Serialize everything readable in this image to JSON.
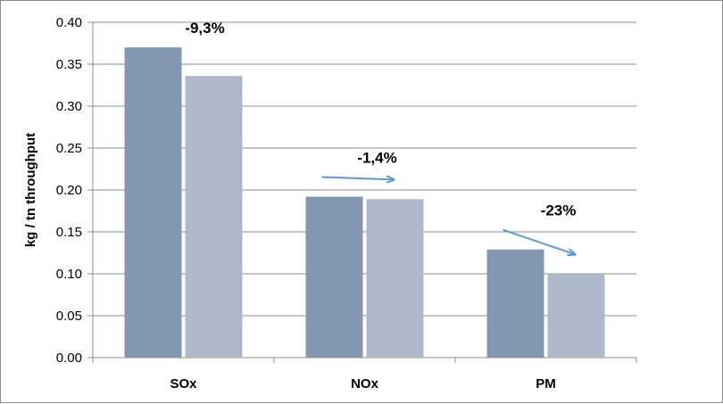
{
  "chart_data": {
    "type": "bar",
    "categories": [
      "SOx",
      "NOx",
      "PM"
    ],
    "series": [
      {
        "values": [
          0.37,
          0.192,
          0.129
        ],
        "color": "#8497b0"
      },
      {
        "values": [
          0.336,
          0.189,
          0.1
        ],
        "color": "#adb9ca"
      }
    ],
    "ylabel": "kg / tn throughput",
    "xlabel": "",
    "title": "",
    "ylim": [
      0,
      0.4
    ],
    "yticks": [
      "0.00",
      "0.05",
      "0.10",
      "0.15",
      "0.20",
      "0.25",
      "0.30",
      "0.35",
      "0.40"
    ],
    "grid": true,
    "annotations": [
      {
        "category": "SOx",
        "text": "-9,3%",
        "arrow": false
      },
      {
        "category": "NOx",
        "text": "-1,4%",
        "arrow": true
      },
      {
        "category": "PM",
        "text": "-23%",
        "arrow": true
      }
    ],
    "arrow_color": "#5b9bd5"
  }
}
